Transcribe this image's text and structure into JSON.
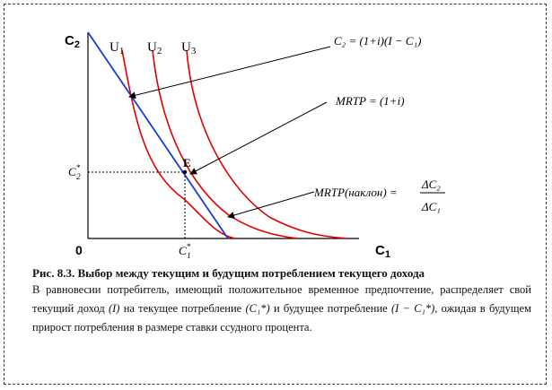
{
  "diagram": {
    "y_axis_label": "C",
    "y_axis_sub": "2",
    "x_axis_label": "C",
    "x_axis_sub": "1",
    "origin_label": "0",
    "curves": [
      {
        "label": "U",
        "sub": "1"
      },
      {
        "label": "U",
        "sub": "2"
      },
      {
        "label": "U",
        "sub": "3"
      }
    ],
    "point_label": "E",
    "c2_star_label": "C",
    "c1_star_label": "C",
    "star_sup": "*",
    "star_sub2": "2",
    "star_sub1": "1",
    "annotation_budget": "C₂ = (1+i)(I − C₁)",
    "annotation_mrtp": "MRTP = (1+i)",
    "annotation_slope_left": "MRTP(наклон) =",
    "annotation_slope_num": "ΔC₂",
    "annotation_slope_den": "ΔC₁",
    "colors": {
      "indifference": "#e00000",
      "budget": "#1a3ad6",
      "axes": "#000000"
    }
  },
  "caption": {
    "title": "Рис. 8.3. Выбор между текущим и будущим потреблением текущего дохода",
    "body_1": "В равновесии потребитель, имеющий положительное временное предпочтение, распределяет свой текущий доход",
    "income": "(I)",
    "body_2": "на текущее потребление",
    "c1_star": "(C₁*)",
    "body_3": "и будущее потребление",
    "saving": "(I − C₁*),",
    "body_4": "ожидая в будущем прирост потребления в размере ставки ссудного процента."
  }
}
